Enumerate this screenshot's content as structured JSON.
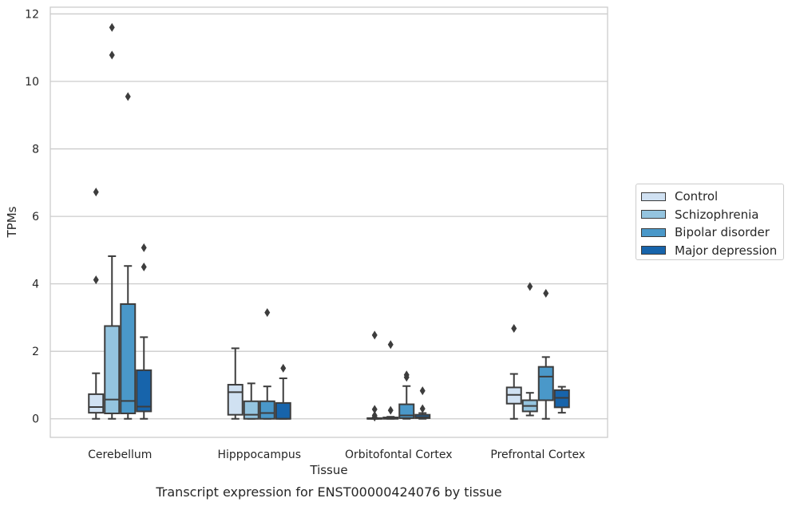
{
  "chart_data": {
    "type": "box",
    "title": "Transcript expression for ENST00000424076 by tissue",
    "xlabel": "Tissue",
    "ylabel": "TPMs",
    "ylim": [
      -0.55,
      12.2
    ],
    "yticks": [
      0,
      2,
      4,
      6,
      8,
      10,
      12
    ],
    "grid": "horizontal",
    "legend_position": "right",
    "categories": [
      "Cerebellum",
      "Hipppocampus",
      "Orbitofontal Cortex",
      "Prefrontal Cortex"
    ],
    "series": [
      {
        "name": "Control",
        "color": "#d0e1f2",
        "boxes": [
          {
            "whislo": 0.0,
            "q1": 0.18,
            "med": 0.35,
            "q3": 0.73,
            "whishi": 1.35,
            "fliers": [
              4.12,
              6.72
            ]
          },
          {
            "whislo": 0.0,
            "q1": 0.12,
            "med": 0.79,
            "q3": 1.01,
            "whishi": 2.09,
            "fliers": []
          },
          {
            "whislo": 0.0,
            "q1": 0.0,
            "med": 0.0,
            "q3": 0.02,
            "whishi": 0.02,
            "fliers": [
              0.05,
              0.1,
              0.28,
              2.48
            ]
          },
          {
            "whislo": 0.0,
            "q1": 0.45,
            "med": 0.71,
            "q3": 0.93,
            "whishi": 1.33,
            "fliers": [
              2.68
            ]
          }
        ]
      },
      {
        "name": "Schizophrenia",
        "color": "#94c4df",
        "boxes": [
          {
            "whislo": 0.0,
            "q1": 0.16,
            "med": 0.57,
            "q3": 2.75,
            "whishi": 4.82,
            "fliers": [
              10.78,
              11.6
            ]
          },
          {
            "whislo": 0.0,
            "q1": 0.0,
            "med": 0.12,
            "q3": 0.52,
            "whishi": 1.05,
            "fliers": []
          },
          {
            "whislo": 0.0,
            "q1": 0.0,
            "med": 0.02,
            "q3": 0.04,
            "whishi": 0.06,
            "fliers": [
              0.25,
              2.2
            ]
          },
          {
            "whislo": 0.1,
            "q1": 0.22,
            "med": 0.38,
            "q3": 0.55,
            "whishi": 0.77,
            "fliers": [
              3.92
            ]
          }
        ]
      },
      {
        "name": "Bipolar disorder",
        "color": "#4a98c9",
        "boxes": [
          {
            "whislo": 0.0,
            "q1": 0.16,
            "med": 0.53,
            "q3": 3.4,
            "whishi": 4.53,
            "fliers": [
              9.55
            ]
          },
          {
            "whislo": 0.0,
            "q1": 0.0,
            "med": 0.17,
            "q3": 0.52,
            "whishi": 0.96,
            "fliers": [
              3.15
            ]
          },
          {
            "whislo": 0.0,
            "q1": 0.02,
            "med": 0.1,
            "q3": 0.43,
            "whishi": 0.97,
            "fliers": [
              1.23,
              1.3
            ]
          },
          {
            "whislo": 0.0,
            "q1": 0.55,
            "med": 1.25,
            "q3": 1.54,
            "whishi": 1.83,
            "fliers": [
              3.72
            ]
          }
        ]
      },
      {
        "name": "Major depression",
        "color": "#1764ab",
        "boxes": [
          {
            "whislo": 0.0,
            "q1": 0.22,
            "med": 0.36,
            "q3": 1.44,
            "whishi": 2.42,
            "fliers": [
              4.5,
              5.07
            ]
          },
          {
            "whislo": 0.0,
            "q1": 0.0,
            "med": 0.0,
            "q3": 0.47,
            "whishi": 1.2,
            "fliers": [
              1.5
            ]
          },
          {
            "whislo": 0.0,
            "q1": 0.02,
            "med": 0.05,
            "q3": 0.12,
            "whishi": 0.17,
            "fliers": [
              0.3,
              0.83
            ]
          },
          {
            "whislo": 0.18,
            "q1": 0.34,
            "med": 0.62,
            "q3": 0.85,
            "whishi": 0.95,
            "fliers": []
          }
        ]
      }
    ]
  }
}
